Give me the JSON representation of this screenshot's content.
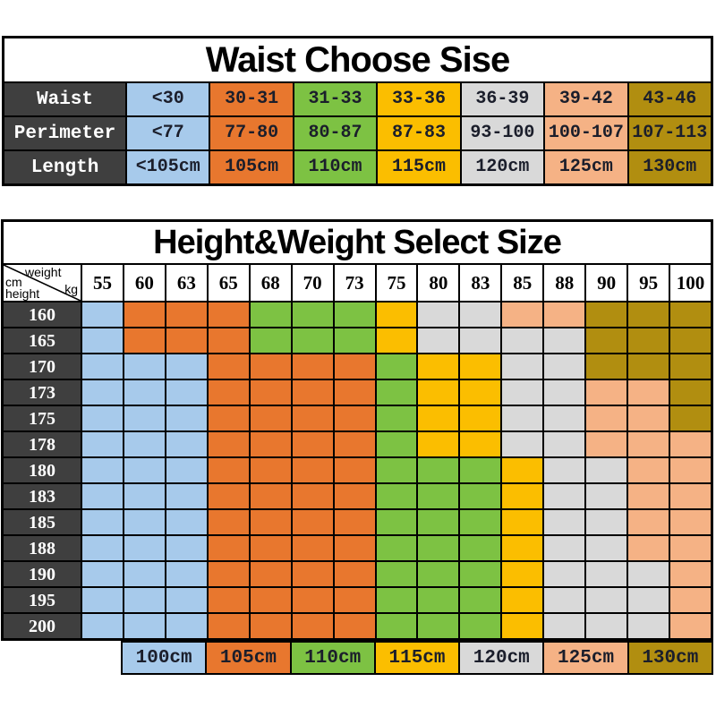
{
  "palette": {
    "blue": "#A7CAEB",
    "orange": "#E8772E",
    "green": "#7DC243",
    "yellow": "#FBBE00",
    "gray": "#D9D9D9",
    "peach": "#F5B285",
    "gold": "#B18E10",
    "header_dark": "#3F3F3F",
    "grid_line": "#000000",
    "cell_text": "#1B1E2B"
  },
  "waist_table": {
    "title": "Waist Choose Sise",
    "column_colors": [
      "blue",
      "orange",
      "green",
      "yellow",
      "gray",
      "peach",
      "gold"
    ],
    "rows": [
      {
        "label": "Waist",
        "values": [
          "<30",
          "30-31",
          "31-33",
          "33-36",
          "36-39",
          "39-42",
          "43-46"
        ]
      },
      {
        "label": "Perimeter",
        "values": [
          "<77",
          "77-80",
          "80-87",
          "87-83",
          "93-100",
          "100-107",
          "107-113"
        ]
      },
      {
        "label": "Length",
        "values": [
          "<105cm",
          "105cm",
          "110cm",
          "115cm",
          "120cm",
          "125cm",
          "130cm"
        ]
      }
    ]
  },
  "size_table": {
    "title": "Height&Weight Select Size",
    "corner": {
      "weight": "weight",
      "kg": "kg",
      "cm": "cm",
      "height": "height"
    },
    "weights": [
      "55",
      "60",
      "63",
      "65",
      "68",
      "70",
      "73",
      "75",
      "80",
      "83",
      "85",
      "88",
      "90",
      "95",
      "100"
    ],
    "rows": [
      {
        "height": "160",
        "cells": [
          "blue",
          "orange",
          "orange",
          "orange",
          "green",
          "green",
          "green",
          "yellow",
          "gray",
          "gray",
          "peach",
          "peach",
          "gold",
          "gold",
          "gold"
        ]
      },
      {
        "height": "165",
        "cells": [
          "blue",
          "orange",
          "orange",
          "orange",
          "green",
          "green",
          "green",
          "yellow",
          "gray",
          "gray",
          "gray",
          "gray",
          "gold",
          "gold",
          "gold"
        ]
      },
      {
        "height": "170",
        "cells": [
          "blue",
          "blue",
          "blue",
          "orange",
          "orange",
          "orange",
          "orange",
          "green",
          "yellow",
          "yellow",
          "gray",
          "gray",
          "gold",
          "gold",
          "gold"
        ]
      },
      {
        "height": "173",
        "cells": [
          "blue",
          "blue",
          "blue",
          "orange",
          "orange",
          "orange",
          "orange",
          "green",
          "yellow",
          "yellow",
          "gray",
          "gray",
          "peach",
          "peach",
          "gold"
        ]
      },
      {
        "height": "175",
        "cells": [
          "blue",
          "blue",
          "blue",
          "orange",
          "orange",
          "orange",
          "orange",
          "green",
          "yellow",
          "yellow",
          "gray",
          "gray",
          "peach",
          "peach",
          "gold"
        ]
      },
      {
        "height": "178",
        "cells": [
          "blue",
          "blue",
          "blue",
          "orange",
          "orange",
          "orange",
          "orange",
          "green",
          "yellow",
          "yellow",
          "gray",
          "gray",
          "peach",
          "peach",
          "peach"
        ]
      },
      {
        "height": "180",
        "cells": [
          "blue",
          "blue",
          "blue",
          "orange",
          "orange",
          "orange",
          "orange",
          "green",
          "green",
          "green",
          "yellow",
          "gray",
          "gray",
          "peach",
          "peach"
        ]
      },
      {
        "height": "183",
        "cells": [
          "blue",
          "blue",
          "blue",
          "orange",
          "orange",
          "orange",
          "orange",
          "green",
          "green",
          "green",
          "yellow",
          "gray",
          "gray",
          "peach",
          "peach"
        ]
      },
      {
        "height": "185",
        "cells": [
          "blue",
          "blue",
          "blue",
          "orange",
          "orange",
          "orange",
          "orange",
          "green",
          "green",
          "green",
          "yellow",
          "gray",
          "gray",
          "peach",
          "peach"
        ]
      },
      {
        "height": "188",
        "cells": [
          "blue",
          "blue",
          "blue",
          "orange",
          "orange",
          "orange",
          "orange",
          "green",
          "green",
          "green",
          "yellow",
          "gray",
          "gray",
          "peach",
          "peach"
        ]
      },
      {
        "height": "190",
        "cells": [
          "blue",
          "blue",
          "blue",
          "orange",
          "orange",
          "orange",
          "orange",
          "green",
          "green",
          "green",
          "yellow",
          "gray",
          "gray",
          "gray",
          "peach"
        ]
      },
      {
        "height": "195",
        "cells": [
          "blue",
          "blue",
          "blue",
          "orange",
          "orange",
          "orange",
          "orange",
          "green",
          "green",
          "green",
          "yellow",
          "gray",
          "gray",
          "gray",
          "peach"
        ]
      },
      {
        "height": "200",
        "cells": [
          "blue",
          "blue",
          "blue",
          "orange",
          "orange",
          "orange",
          "orange",
          "green",
          "green",
          "green",
          "yellow",
          "gray",
          "gray",
          "gray",
          "peach"
        ]
      }
    ]
  },
  "legend": {
    "items": [
      {
        "label": "100cm",
        "color": "blue"
      },
      {
        "label": "105cm",
        "color": "orange"
      },
      {
        "label": "110cm",
        "color": "green"
      },
      {
        "label": "115cm",
        "color": "yellow"
      },
      {
        "label": "120cm",
        "color": "gray"
      },
      {
        "label": "125cm",
        "color": "peach"
      },
      {
        "label": "130cm",
        "color": "gold"
      }
    ]
  },
  "chart_data": [
    {
      "type": "table",
      "title": "Waist Choose Sise",
      "row_headers": [
        "Waist",
        "Perimeter",
        "Length"
      ],
      "rows": [
        [
          "<30",
          "30-31",
          "31-33",
          "33-36",
          "36-39",
          "39-42",
          "43-46"
        ],
        [
          "<77",
          "77-80",
          "80-87",
          "87-83",
          "93-100",
          "100-107",
          "107-113"
        ],
        [
          "<105cm",
          "105cm",
          "110cm",
          "115cm",
          "120cm",
          "125cm",
          "130cm"
        ]
      ]
    },
    {
      "type": "heatmap",
      "title": "Height&Weight Select Size",
      "xlabel": "weight kg",
      "ylabel": "cm height",
      "x": [
        55,
        60,
        63,
        65,
        68,
        70,
        73,
        75,
        80,
        83,
        85,
        88,
        90,
        95,
        100
      ],
      "y": [
        160,
        165,
        170,
        173,
        175,
        178,
        180,
        183,
        185,
        188,
        190,
        195,
        200
      ],
      "legend_position": "bottom",
      "legend": [
        "100cm",
        "105cm",
        "110cm",
        "115cm",
        "120cm",
        "125cm",
        "130cm"
      ],
      "values": [
        [
          "100cm",
          "105cm",
          "105cm",
          "105cm",
          "110cm",
          "110cm",
          "110cm",
          "115cm",
          "120cm",
          "120cm",
          "125cm",
          "125cm",
          "130cm",
          "130cm",
          "130cm"
        ],
        [
          "100cm",
          "105cm",
          "105cm",
          "105cm",
          "110cm",
          "110cm",
          "110cm",
          "115cm",
          "120cm",
          "120cm",
          "120cm",
          "120cm",
          "130cm",
          "130cm",
          "130cm"
        ],
        [
          "100cm",
          "100cm",
          "100cm",
          "105cm",
          "105cm",
          "105cm",
          "105cm",
          "110cm",
          "115cm",
          "115cm",
          "120cm",
          "120cm",
          "130cm",
          "130cm",
          "130cm"
        ],
        [
          "100cm",
          "100cm",
          "100cm",
          "105cm",
          "105cm",
          "105cm",
          "105cm",
          "110cm",
          "115cm",
          "115cm",
          "120cm",
          "120cm",
          "125cm",
          "125cm",
          "130cm"
        ],
        [
          "100cm",
          "100cm",
          "100cm",
          "105cm",
          "105cm",
          "105cm",
          "105cm",
          "110cm",
          "115cm",
          "115cm",
          "120cm",
          "120cm",
          "125cm",
          "125cm",
          "130cm"
        ],
        [
          "100cm",
          "100cm",
          "100cm",
          "105cm",
          "105cm",
          "105cm",
          "105cm",
          "110cm",
          "115cm",
          "115cm",
          "120cm",
          "120cm",
          "125cm",
          "125cm",
          "125cm"
        ],
        [
          "100cm",
          "100cm",
          "100cm",
          "105cm",
          "105cm",
          "105cm",
          "105cm",
          "110cm",
          "110cm",
          "110cm",
          "115cm",
          "120cm",
          "120cm",
          "125cm",
          "125cm"
        ],
        [
          "100cm",
          "100cm",
          "100cm",
          "105cm",
          "105cm",
          "105cm",
          "105cm",
          "110cm",
          "110cm",
          "110cm",
          "115cm",
          "120cm",
          "120cm",
          "125cm",
          "125cm"
        ],
        [
          "100cm",
          "100cm",
          "100cm",
          "105cm",
          "105cm",
          "105cm",
          "105cm",
          "110cm",
          "110cm",
          "110cm",
          "115cm",
          "120cm",
          "120cm",
          "125cm",
          "125cm"
        ],
        [
          "100cm",
          "100cm",
          "100cm",
          "105cm",
          "105cm",
          "105cm",
          "105cm",
          "110cm",
          "110cm",
          "110cm",
          "115cm",
          "120cm",
          "120cm",
          "125cm",
          "125cm"
        ],
        [
          "100cm",
          "100cm",
          "100cm",
          "105cm",
          "105cm",
          "105cm",
          "105cm",
          "110cm",
          "110cm",
          "110cm",
          "115cm",
          "120cm",
          "120cm",
          "120cm",
          "125cm"
        ],
        [
          "100cm",
          "100cm",
          "100cm",
          "105cm",
          "105cm",
          "105cm",
          "105cm",
          "110cm",
          "110cm",
          "110cm",
          "115cm",
          "120cm",
          "120cm",
          "120cm",
          "125cm"
        ],
        [
          "100cm",
          "100cm",
          "100cm",
          "105cm",
          "105cm",
          "105cm",
          "105cm",
          "110cm",
          "110cm",
          "110cm",
          "115cm",
          "120cm",
          "120cm",
          "120cm",
          "125cm"
        ]
      ]
    }
  ]
}
